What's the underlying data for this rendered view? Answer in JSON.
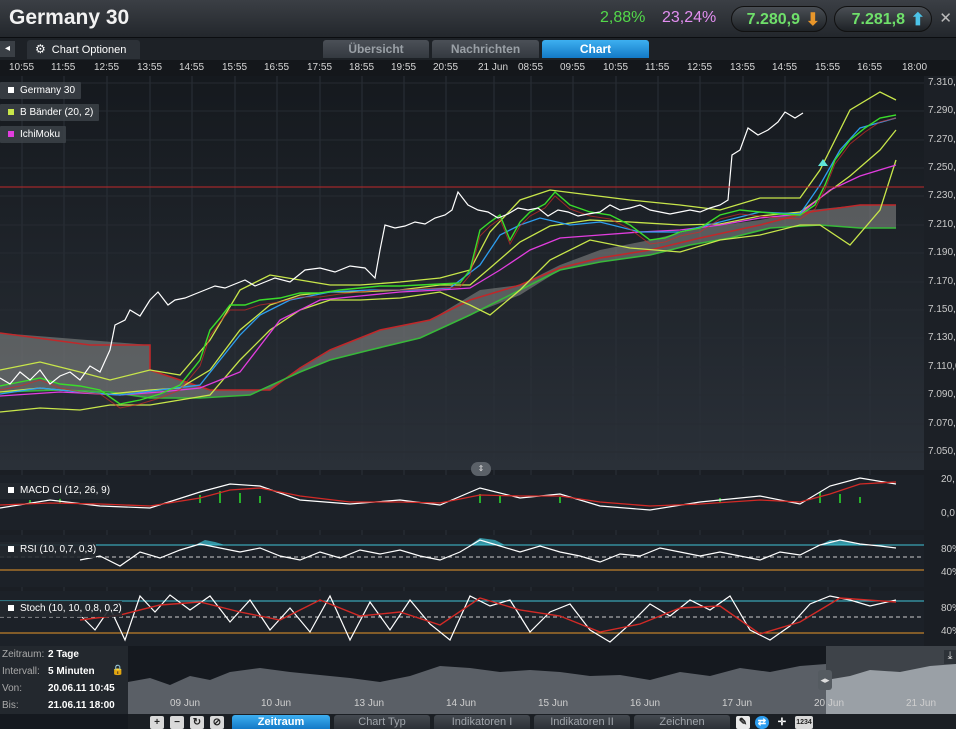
{
  "header": {
    "title": "Germany 30",
    "change_abs": "2,88%",
    "change_pct": "23,24%",
    "bid": "7.280,9",
    "ask": "7.281,8"
  },
  "tabs": {
    "options_label": "Chart Optionen",
    "items": [
      "Übersicht",
      "Nachrichten",
      "Chart"
    ],
    "active": "Chart"
  },
  "time_axis": [
    "10:55",
    "11:55",
    "12:55",
    "13:55",
    "14:55",
    "15:55",
    "16:55",
    "17:55",
    "18:55",
    "19:55",
    "20:55",
    "21 Jun",
    "08:55",
    "09:55",
    "10:55",
    "11:55",
    "12:55",
    "13:55",
    "14:55",
    "15:55",
    "16:55",
    "18:00"
  ],
  "price_axis": [
    "7.310,0",
    "7.290,0",
    "7.270,0",
    "7.250,0",
    "7.230,0",
    "7.210,0",
    "7.190,0",
    "7.170,0",
    "7.150,0",
    "7.130,0",
    "7.110,0",
    "7.090,0",
    "7.070,0",
    "7.050,0"
  ],
  "legends": {
    "main": [
      {
        "label": "Germany 30",
        "color": "#ffffff"
      },
      {
        "label": "B Bänder (20, 2)",
        "color": "#c8e64a"
      },
      {
        "label": "IchiMoku",
        "color": "#e23ddf"
      }
    ],
    "macd": "MACD Cl (12, 26, 9)",
    "rsi": "RSI (10, 0,7, 0,3)",
    "stoch": "Stoch (10, 10, 0,8, 0,2)"
  },
  "sub_axes": {
    "macd": [
      "20,",
      "0,0"
    ],
    "rsi": [
      "80%",
      "40%"
    ],
    "stoch": [
      "80%",
      "40%"
    ]
  },
  "info": {
    "zeitraum_k": "Zeitraum:",
    "zeitraum_v": "2 Tage",
    "intervall_k": "Intervall:",
    "intervall_v": "5 Minuten",
    "von_k": "Von:",
    "von_v": "20.06.11 10:45",
    "bis_k": "Bis:",
    "bis_v": "21.06.11 18:00"
  },
  "navigator_dates": [
    "09 Jun",
    "10 Jun",
    "13 Jun",
    "14 Jun",
    "15 Jun",
    "16 Jun",
    "17 Jun",
    "20 Jun",
    "21 Jun"
  ],
  "period_label": "2T",
  "bottom_tabs": [
    "Zeitraum",
    "Chart Typ",
    "Indikatoren I",
    "Indikatoren II",
    "Zeichnen"
  ],
  "bottom_active": "Zeitraum",
  "colors": {
    "accent_blue": "#1f8ad9",
    "up_green": "#53d94a",
    "pink": "#e28ef0",
    "price_line": "#ffffff",
    "bollinger": "#c8e64a",
    "ichimoku": "#e23ddf",
    "cloud_red": "#c0282a",
    "cloud_green": "#38b83a"
  },
  "icons": [
    "back-arrow-icon",
    "gear-icon",
    "arrow-down-icon",
    "arrow-up-icon",
    "close-icon",
    "lock-icon",
    "plus-icon",
    "minus-icon",
    "refresh-icon",
    "no-icon",
    "pencil-icon",
    "swap-icon",
    "crosshair-icon",
    "numbers-icon"
  ]
}
